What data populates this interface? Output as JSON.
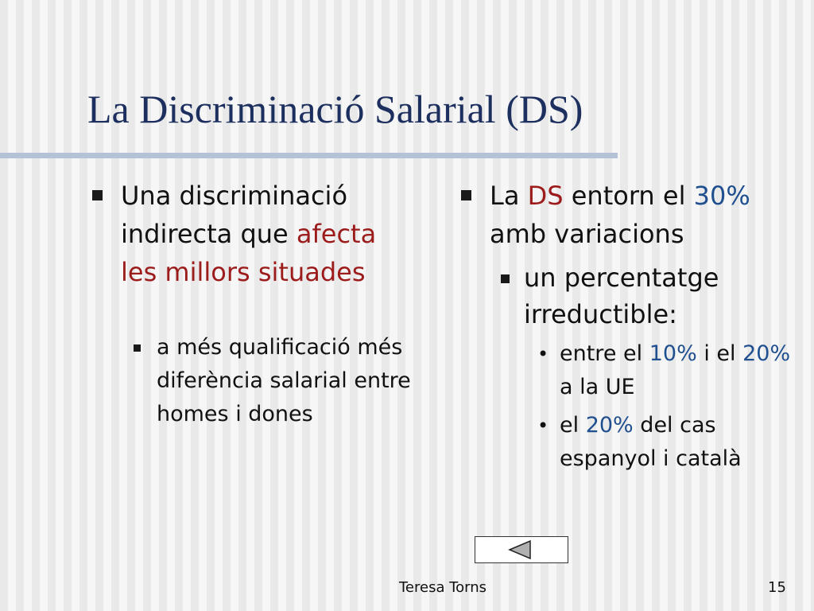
{
  "title": "La Discriminació Salarial (DS)",
  "columns": [
    {
      "items": [
        {
          "level": 1,
          "runs": [
            {
              "text": "Una discriminació indirecta que "
            },
            {
              "text": "afecta les millors situades",
              "color": "#9c1c1c"
            }
          ]
        },
        {
          "level": 2,
          "runs": [
            {
              "text": "a més qualificació més diferència salarial entre homes i dones"
            }
          ]
        }
      ]
    },
    {
      "items": [
        {
          "level": 1,
          "runs": [
            {
              "text": "La "
            },
            {
              "text": "DS",
              "color": "#9c1c1c"
            },
            {
              "text": " entorn el "
            },
            {
              "text": "30%",
              "color": "#1f4f8f"
            },
            {
              "text": " amb variacions"
            }
          ]
        },
        {
          "level": 2,
          "runs": [
            {
              "text": "un percentatge irreductible:"
            }
          ]
        },
        {
          "level": 3,
          "runs": [
            {
              "text": "entre el "
            },
            {
              "text": "10%",
              "color": "#1f4f8f"
            },
            {
              "text": " i el "
            },
            {
              "text": "20%",
              "color": "#1f4f8f"
            },
            {
              "text": " a la UE"
            }
          ]
        },
        {
          "level": 3,
          "runs": [
            {
              "text": "el "
            },
            {
              "text": "20%",
              "color": "#1f4f8f"
            },
            {
              "text": " del cas espanyol i català"
            }
          ]
        }
      ]
    }
  ],
  "footer": {
    "author": "Teresa Torns",
    "page": "15"
  }
}
